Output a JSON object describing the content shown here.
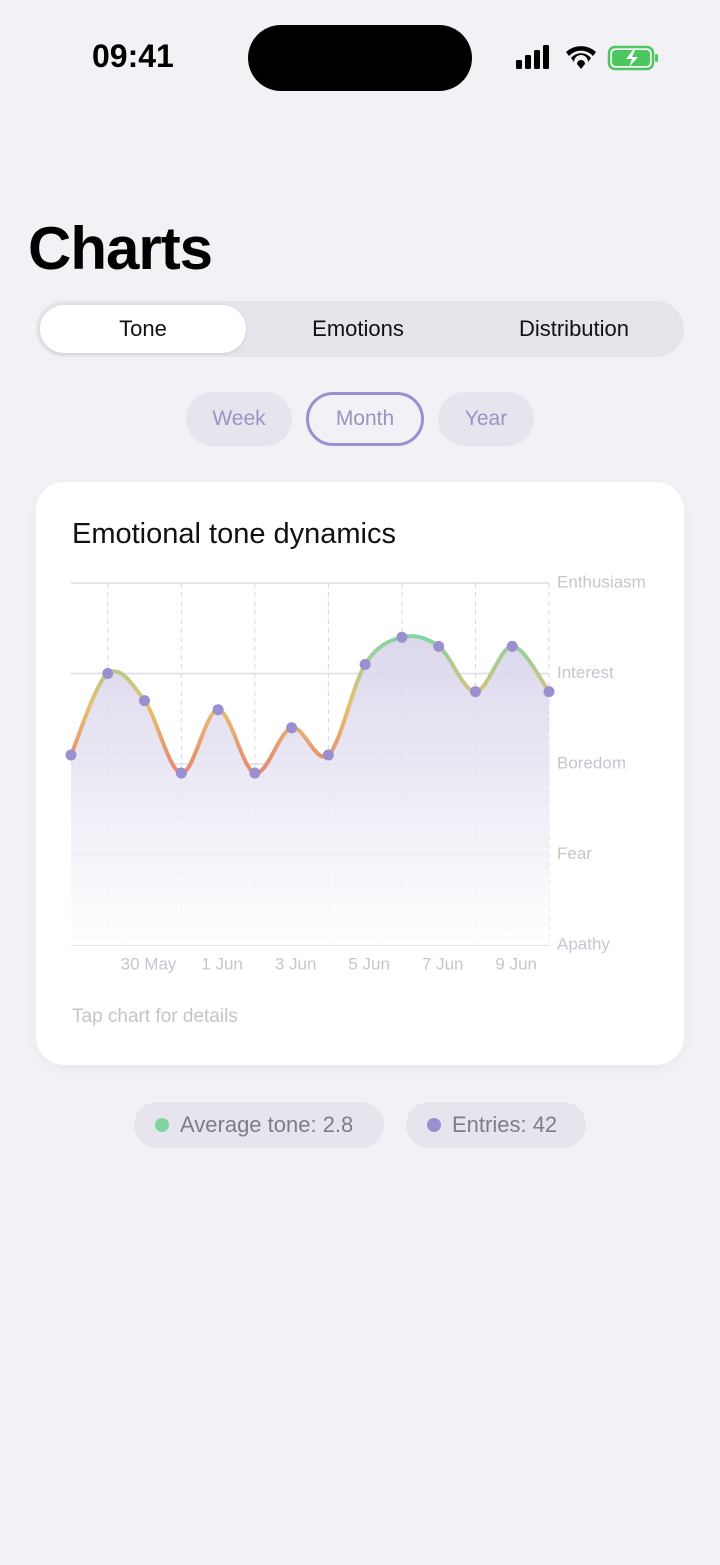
{
  "status_bar": {
    "time": "09:41"
  },
  "header": {
    "title": "Charts"
  },
  "tabs": [
    "Tone",
    "Emotions",
    "Distribution"
  ],
  "periods": [
    "Week",
    "Month",
    "Year"
  ],
  "card": {
    "hint": "Tap chart for details"
  },
  "chart_data": {
    "type": "line",
    "title": "Emotional tone dynamics",
    "categories": [
      null,
      null,
      "30 May",
      null,
      "1 Jun",
      null,
      "3 Jun",
      null,
      "5 Jun",
      null,
      "7 Jun",
      null,
      "9 Jun",
      null
    ],
    "values": [
      2.1,
      3.0,
      2.7,
      1.9,
      2.6,
      1.9,
      2.4,
      2.1,
      3.1,
      3.4,
      3.3,
      2.8,
      3.3,
      2.8
    ],
    "ylim": [
      0,
      4
    ],
    "yticks": [
      {
        "value": 0,
        "label": "Apathy"
      },
      {
        "value": 1,
        "label": "Fear"
      },
      {
        "value": 2,
        "label": "Boredom"
      },
      {
        "value": 3,
        "label": "Interest"
      },
      {
        "value": 4,
        "label": "Enthusiasm"
      }
    ],
    "grid": true,
    "color": "#9b8fcf",
    "line_gradient": [
      "#86d3a4",
      "#e8c070",
      "#e58872"
    ]
  },
  "stats": [
    "Average tone: 2.8",
    "Entries: 42"
  ]
}
